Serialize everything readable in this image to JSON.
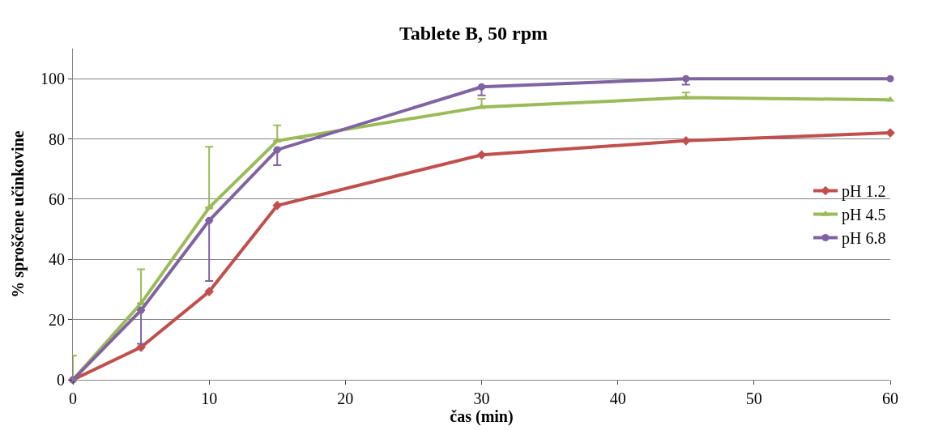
{
  "chart_data": {
    "type": "line",
    "title": "Tablete B, 50 rpm",
    "xlabel": "čas (min)",
    "ylabel": "% sproščene učinkovine",
    "x": [
      0,
      5,
      10,
      15,
      30,
      45,
      60
    ],
    "xlim": [
      0,
      60
    ],
    "xticks": [
      0,
      10,
      20,
      30,
      40,
      50,
      60
    ],
    "ylim": [
      0,
      110
    ],
    "yticks": [
      0,
      20,
      40,
      60,
      80,
      100
    ],
    "grid": "y",
    "legend": "right",
    "series": [
      {
        "name": "pH 1.2",
        "color": "#c0504d",
        "marker": "diamond",
        "values": [
          0,
          10.8,
          29.3,
          57.9,
          74.7,
          79.4,
          82
        ]
      },
      {
        "name": "pH 4.5",
        "color": "#9bbb59",
        "marker": "triangle",
        "values": [
          0,
          25.4,
          57.2,
          79.4,
          90.6,
          93.7,
          93
        ],
        "errors": [
          [
            0,
            8
          ],
          [
            25.4,
            36.7
          ],
          [
            57.2,
            77.4
          ],
          [
            79.4,
            84.5
          ],
          [
            90.6,
            93.3
          ],
          [
            93.7,
            95.4
          ],
          null
        ]
      },
      {
        "name": "pH 6.8",
        "color": "#8064a2",
        "marker": "circle",
        "values": [
          0,
          23.1,
          52.9,
          76.4,
          97.3,
          100,
          100
        ],
        "errors": [
          null,
          [
            12,
            23.1
          ],
          [
            32.8,
            52.9
          ],
          [
            71.3,
            76.4
          ],
          [
            94.5,
            97.3
          ],
          [
            98,
            100
          ],
          null
        ]
      }
    ]
  }
}
